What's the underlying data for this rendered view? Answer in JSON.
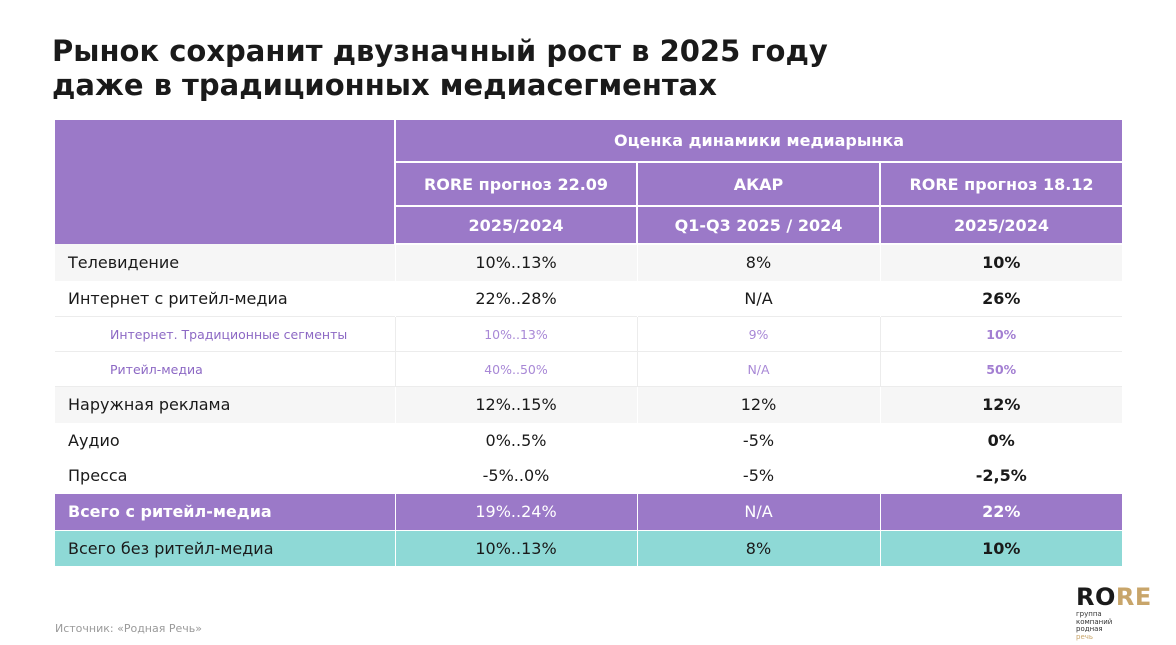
{
  "title": {
    "line1": "Рынок сохранит двузначный рост в 2025 году",
    "line2": "даже в традиционных медиасегментах"
  },
  "table": {
    "group_header": "Оценка динамики медиарынка",
    "columns": [
      {
        "source": "RORE прогноз 22.09",
        "period": "2025/2024"
      },
      {
        "source": "АКАР",
        "period": "Q1-Q3 2025 / 2024"
      },
      {
        "source": "RORE прогноз 18.12",
        "period": "2025/2024"
      }
    ],
    "rows": [
      {
        "name": "Телевидение",
        "values": [
          "10%..13%",
          "8%",
          "10%"
        ]
      },
      {
        "name": "Интернет с ритейл-медиа",
        "values": [
          "22%..28%",
          "N/A",
          "26%"
        ]
      },
      {
        "name": "Интернет. Традиционные сегменты",
        "values": [
          "10%..13%",
          "9%",
          "10%"
        ]
      },
      {
        "name": "Ритейл-медиа",
        "values": [
          "40%..50%",
          "N/A",
          "50%"
        ]
      },
      {
        "name": "Наружная реклама",
        "values": [
          "12%..15%",
          "12%",
          "12%"
        ]
      },
      {
        "name": "Аудио",
        "values": [
          "0%..5%",
          "-5%",
          "0%"
        ]
      },
      {
        "name": "Пресса",
        "values": [
          "-5%..0%",
          "-5%",
          "-2,5%"
        ]
      },
      {
        "name": "Всего с ритейл-медиа",
        "values": [
          "19%..24%",
          "N/A",
          "22%"
        ]
      },
      {
        "name": "Всего без ритейл-медиа",
        "values": [
          "10%..13%",
          "8%",
          "10%"
        ]
      }
    ]
  },
  "footer": {
    "source": "Источник: «Родная Речь»",
    "logo_ro": "RO",
    "logo_re": "RE",
    "logo_tag_1": "группа",
    "logo_tag_2": "компаний",
    "logo_tag_3": "родная",
    "logo_tag_4": "речь"
  },
  "colors": {
    "header_purple": "#9b79c8",
    "total_teal": "#8ed9d6",
    "sub_text_purple": "#8c68c4",
    "logo_gold": "#c8a56a"
  }
}
